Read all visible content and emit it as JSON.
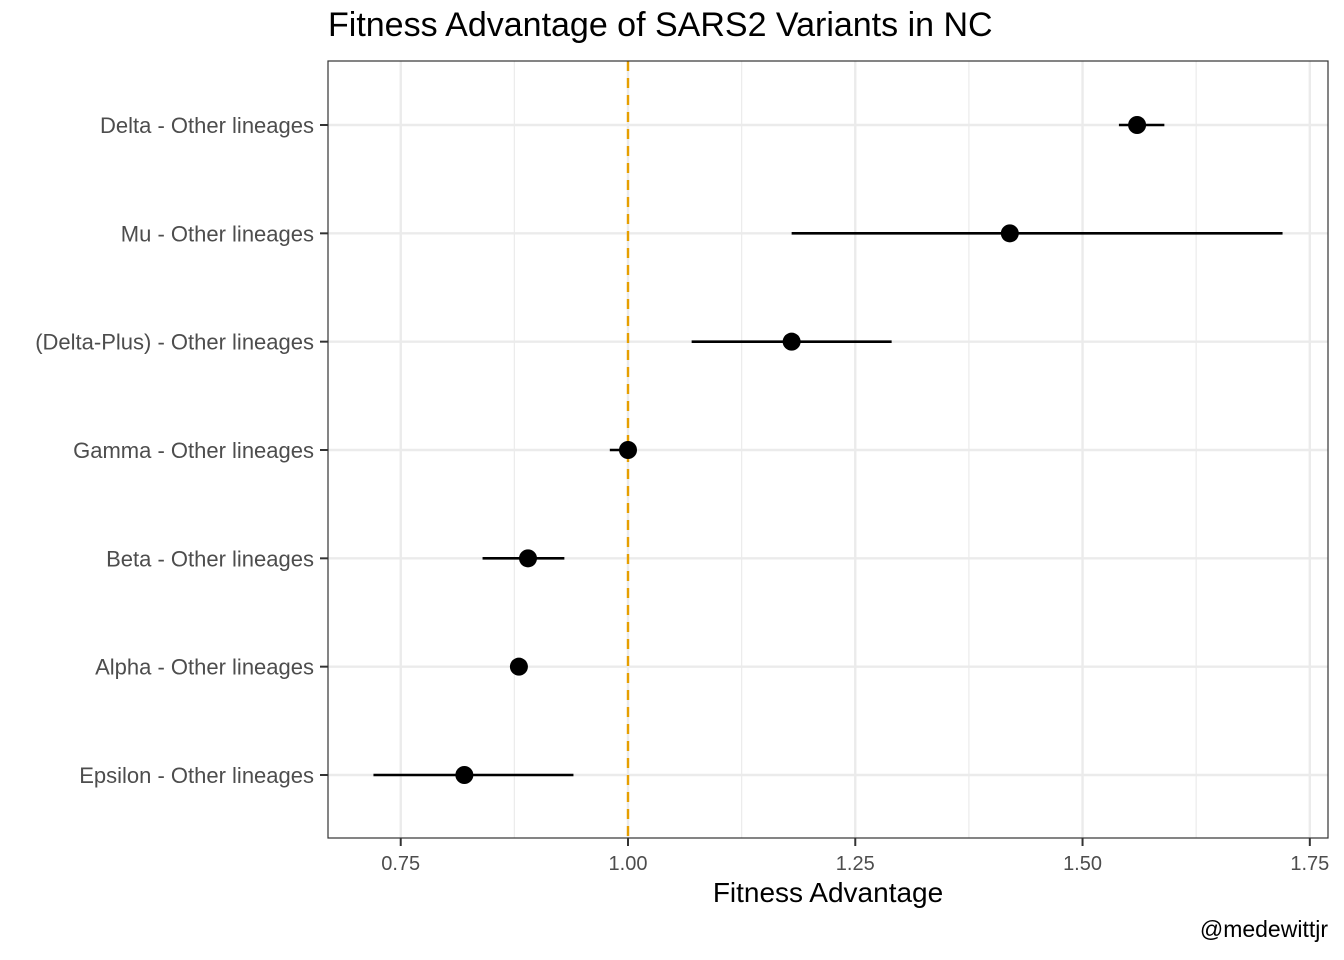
{
  "chart_data": {
    "type": "scatter",
    "title": "Fitness Advantage of SARS2 Variants in NC",
    "xlabel": "Fitness Advantage",
    "ylabel": "",
    "xlim": [
      0.67,
      1.77
    ],
    "xticks": [
      0.75,
      1.0,
      1.25,
      1.5,
      1.75
    ],
    "xtick_labels": [
      "0.75",
      "1.00",
      "1.25",
      "1.50",
      "1.75"
    ],
    "reference_line": {
      "x": 1.0,
      "color": "#e69f00",
      "style": "dashed"
    },
    "grid": true,
    "categories": [
      "Delta - Other lineages",
      "Mu - Other lineages",
      "(Delta-Plus) - Other lineages",
      "Gamma - Other lineages",
      "Beta - Other lineages",
      "Alpha - Other lineages",
      "Epsilon - Other lineages"
    ],
    "points": [
      {
        "label": "Delta - Other lineages",
        "estimate": 1.56,
        "lower": 1.54,
        "upper": 1.59
      },
      {
        "label": "Mu - Other lineages",
        "estimate": 1.42,
        "lower": 1.18,
        "upper": 1.72
      },
      {
        "label": "(Delta-Plus) - Other lineages",
        "estimate": 1.18,
        "lower": 1.07,
        "upper": 1.29
      },
      {
        "label": "Gamma - Other lineages",
        "estimate": 1.0,
        "lower": 0.98,
        "upper": 1.0
      },
      {
        "label": "Beta - Other lineages",
        "estimate": 0.89,
        "lower": 0.84,
        "upper": 0.93
      },
      {
        "label": "Alpha - Other lineages",
        "estimate": 0.88,
        "lower": 0.88,
        "upper": 0.88
      },
      {
        "label": "Epsilon - Other lineages",
        "estimate": 0.82,
        "lower": 0.72,
        "upper": 0.94
      }
    ],
    "colors": {
      "point": "#000000",
      "errorbar": "#000000",
      "grid": "#ebebeb",
      "panel_border": "#333333"
    }
  },
  "caption": "@medewittjr"
}
